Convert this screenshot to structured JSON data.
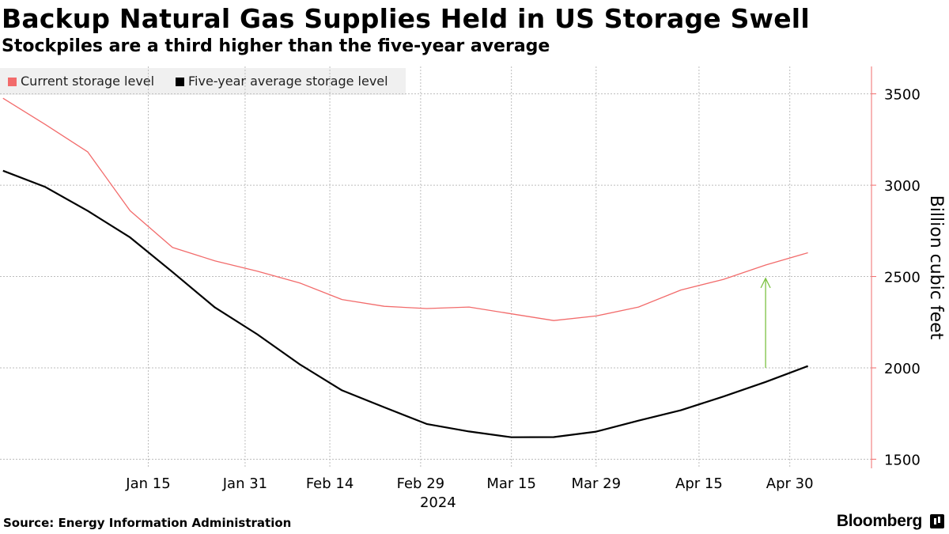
{
  "chart_data": {
    "type": "line",
    "title": "Backup Natural Gas Supplies Held in US Storage Swell",
    "subtitle": "Stockpiles are a third higher than the five-year average",
    "ylabel": "Billion cubic feet",
    "xlabel": "",
    "year_label": "2024",
    "ylim": [
      1450,
      3650
    ],
    "yticks": [
      1500,
      2000,
      2500,
      3000,
      3500
    ],
    "xrange": [
      -9.5,
      134.5
    ],
    "xticks": [
      {
        "label": "Jan 15",
        "day": 15
      },
      {
        "label": "Jan 31",
        "day": 31
      },
      {
        "label": "Feb 14",
        "day": 45
      },
      {
        "label": "Feb 29",
        "day": 60
      },
      {
        "label": "Mar 15",
        "day": 75
      },
      {
        "label": "Mar 29",
        "day": 89
      },
      {
        "label": "Apr 15",
        "day": 106
      },
      {
        "label": "Apr 30",
        "day": 121
      }
    ],
    "grid": true,
    "legend_position": "top-left",
    "x": [
      -9,
      -2,
      5,
      12,
      19,
      26,
      33,
      40,
      47,
      54,
      61,
      68,
      75,
      82,
      89,
      96,
      103,
      110,
      117,
      124
    ],
    "series": [
      {
        "name": "Current storage level",
        "color": "#f26b6b",
        "values": [
          3476,
          3332,
          3182,
          2860,
          2659,
          2586,
          2529,
          2465,
          2374,
          2337,
          2325,
          2333,
          2296,
          2259,
          2284,
          2333,
          2426,
          2484,
          2563,
          2630
        ]
      },
      {
        "name": "Five-year average storage level",
        "color": "#000000",
        "values": [
          3079,
          2990,
          2859,
          2714,
          2525,
          2331,
          2184,
          2020,
          1877,
          1784,
          1693,
          1652,
          1620,
          1621,
          1651,
          1711,
          1768,
          1843,
          1923,
          2010
        ]
      }
    ],
    "annotation": {
      "type": "arrow",
      "x": 117,
      "from": 2000,
      "to": 2490,
      "color": "#7cc242"
    }
  },
  "footer": {
    "source": "Source: Energy Information Administration",
    "brand": "Bloomberg"
  }
}
